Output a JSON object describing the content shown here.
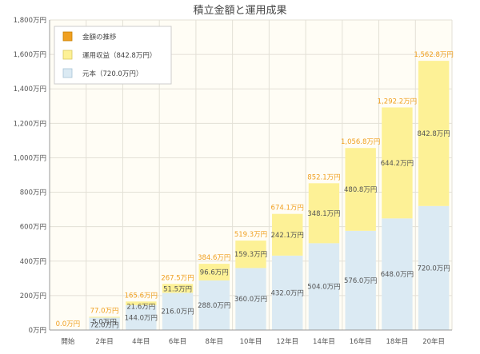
{
  "chart_data": {
    "type": "bar",
    "title": "積立金額と運用成果",
    "categories": [
      "開始",
      "2年目",
      "4年目",
      "6年目",
      "8年目",
      "10年目",
      "12年目",
      "14年目",
      "16年目",
      "18年目",
      "20年目"
    ],
    "series": [
      {
        "name": "元本（720.0万円）",
        "values": [
          0,
          72.0,
          144.0,
          216.0,
          288.0,
          360.0,
          432.0,
          504.0,
          576.0,
          648.0,
          720.0
        ],
        "labels": [
          "",
          "72.0万円",
          "144.0万円",
          "216.0万円",
          "288.0万円",
          "360.0万円",
          "432.0万円",
          "504.0万円",
          "576.0万円",
          "648.0万円",
          "720.0万円"
        ],
        "color": "#dbeaf3"
      },
      {
        "name": "運用収益（842.8万円）",
        "values": [
          0,
          5.0,
          21.6,
          51.5,
          96.6,
          159.3,
          242.1,
          348.1,
          480.8,
          644.2,
          842.8
        ],
        "labels": [
          "",
          "5.0万円",
          "21.6万円",
          "51.5万円",
          "96.6万円",
          "159.3万円",
          "242.1万円",
          "348.1万円",
          "480.8万円",
          "644.2万円",
          "842.8万円"
        ],
        "color": "#fdf196"
      }
    ],
    "totals": {
      "name": "金額の推移",
      "values": [
        0.0,
        77.0,
        165.6,
        267.5,
        384.6,
        519.3,
        674.1,
        852.1,
        1056.8,
        1292.2,
        1562.8
      ],
      "labels": [
        "0.0万円",
        "77.0万円",
        "165.6万円",
        "267.5万円",
        "384.6万円",
        "519.3万円",
        "674.1万円",
        "852.1万円",
        "1,056.8万円",
        "1,292.2万円",
        "1,562.8万円"
      ],
      "color": "#f0a020"
    },
    "ylim": [
      0,
      1800
    ],
    "yticks": [
      0,
      200,
      400,
      600,
      800,
      1000,
      1200,
      1400,
      1600,
      1800
    ],
    "ytick_labels": [
      "0万円",
      "200万円",
      "400万円",
      "600万円",
      "800万円",
      "1,000万円",
      "1,200万円",
      "1,400万円",
      "1,600万円",
      "1,800万円"
    ],
    "xlabel": "",
    "ylabel": "",
    "grid": true,
    "legend_position": "top-left",
    "legend": [
      {
        "label": "金額の推移",
        "color": "#f0a020"
      },
      {
        "label": "運用収益（842.8万円）",
        "color": "#fdf196"
      },
      {
        "label": "元本（720.0万円）",
        "color": "#dbeaf3"
      }
    ],
    "plot_background": "#fffdf5",
    "grid_color": "#e3e0d6"
  }
}
